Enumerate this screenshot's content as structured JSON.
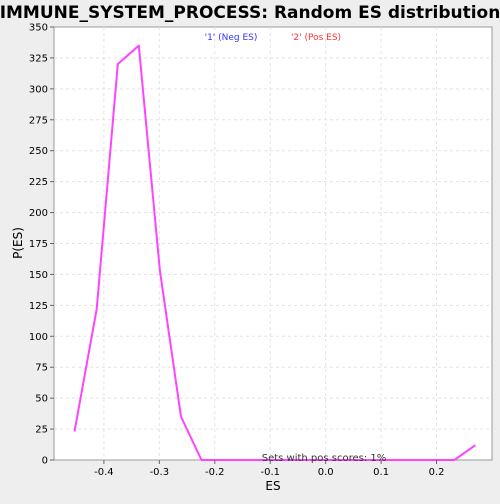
{
  "chart_data": {
    "type": "line",
    "title": "IMMUNE_SYSTEM_PROCESS: Random ES distribution",
    "xlabel": "ES",
    "ylabel": "P(ES)",
    "xlim": [
      -0.49,
      0.3
    ],
    "ylim": [
      0,
      350
    ],
    "xticks": [
      -0.4,
      -0.3,
      -0.2,
      -0.1,
      0.0,
      0.1,
      0.2
    ],
    "xtick_labels": [
      "-0.4",
      "-0.3",
      "-0.2",
      "-0.1",
      "0.0",
      "0.1",
      "0.2"
    ],
    "yticks": [
      0,
      25,
      50,
      75,
      100,
      125,
      150,
      175,
      200,
      225,
      250,
      275,
      300,
      325,
      350
    ],
    "grid": true,
    "legend_position": "top-center",
    "legend": [
      {
        "label": "'1' (Neg ES)",
        "color": "#3333ff"
      },
      {
        "label": "'2' (Pos ES)",
        "color": "#ff3333"
      }
    ],
    "annotation": "Sets with pos scores: 1%",
    "series": [
      {
        "color": "#ff44ff",
        "x": [
          -0.453,
          -0.413,
          -0.375,
          -0.337,
          -0.299,
          -0.261,
          -0.224,
          -0.186,
          -0.148,
          -0.11,
          -0.072,
          -0.034,
          0.004,
          0.042,
          0.08,
          0.118,
          0.156,
          0.194,
          0.232,
          0.27
        ],
        "y": [
          23,
          122,
          320,
          335,
          153,
          35,
          0,
          0,
          0,
          0,
          0,
          0,
          0,
          0,
          0,
          0,
          0,
          0,
          0,
          12
        ]
      }
    ]
  }
}
